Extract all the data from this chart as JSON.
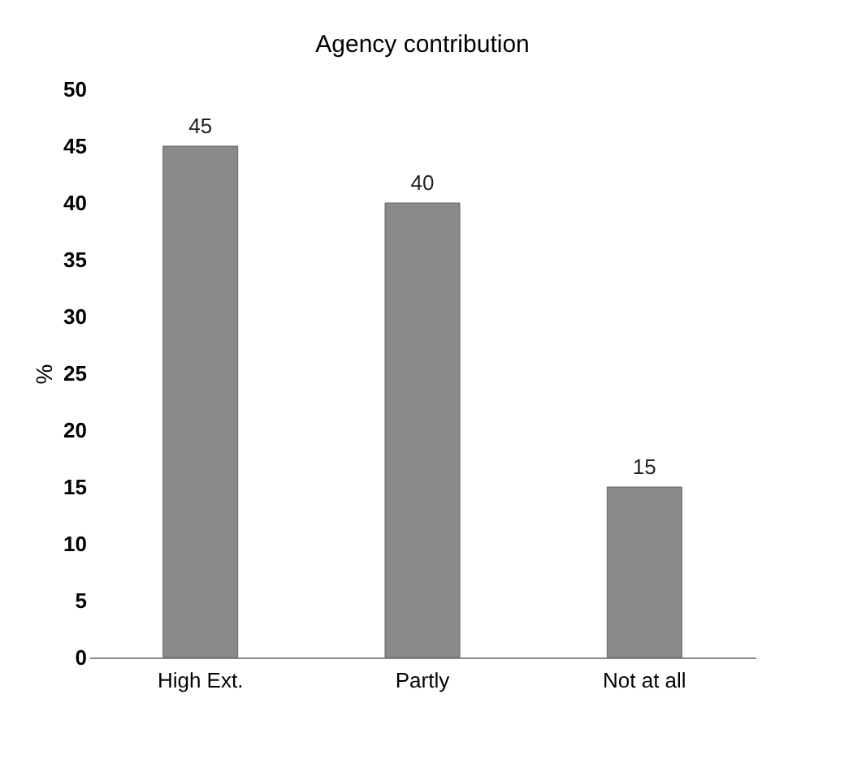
{
  "chart_data": {
    "type": "bar",
    "title": "Agency contribution",
    "ylabel": "%",
    "categories": [
      "High Ext.",
      "Partly",
      "Not at all"
    ],
    "values": [
      45,
      40,
      15
    ],
    "color": "#8a8a8a",
    "ylim": [
      0,
      50
    ],
    "yticks": [
      0,
      5,
      10,
      15,
      20,
      25,
      30,
      35,
      40,
      45,
      50
    ],
    "grid": false,
    "data_labels": true
  }
}
